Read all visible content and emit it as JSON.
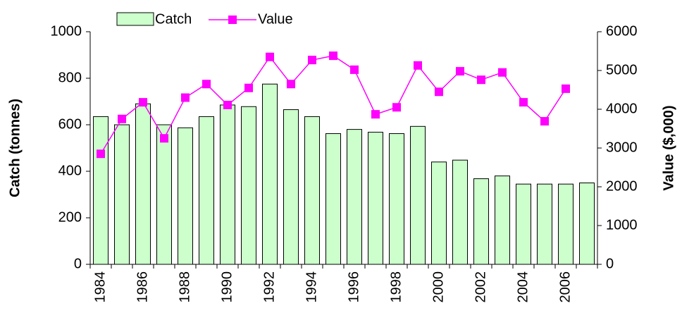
{
  "chart_data": {
    "type": "bar_line",
    "categories": [
      "1984",
      null,
      "1986",
      null,
      "1988",
      null,
      "1990",
      null,
      "1992",
      null,
      "1994",
      null,
      "1996",
      null,
      "1998",
      null,
      "2000",
      null,
      "2002",
      null,
      "2004",
      null,
      "2006",
      null
    ],
    "series": [
      {
        "name": "Catch",
        "type": "bar",
        "color": "#ccffcc",
        "values": [
          635,
          600,
          690,
          600,
          587,
          635,
          685,
          678,
          775,
          665,
          635,
          562,
          580,
          568,
          562,
          593,
          440,
          448,
          368,
          380,
          345,
          345,
          345,
          350
        ]
      },
      {
        "name": "Value",
        "type": "line",
        "axis": "y2",
        "color": "#ff00ff",
        "values": [
          2850,
          3750,
          4180,
          3250,
          4300,
          4650,
          4110,
          4550,
          5350,
          4650,
          5270,
          5380,
          5020,
          3870,
          4050,
          5130,
          4450,
          4980,
          4760,
          4950,
          4180,
          3690,
          4530,
          null
        ]
      }
    ],
    "y_label": "Catch (tonnes)",
    "y2_label": "Value ($,000)",
    "ylim": [
      0,
      1000
    ],
    "yticks": [
      0,
      200,
      400,
      600,
      800,
      1000
    ],
    "y2lim": [
      0,
      6000
    ],
    "y2ticks": [
      0,
      1000,
      2000,
      3000,
      4000,
      5000,
      6000
    ],
    "grid": false,
    "legend": "top"
  }
}
